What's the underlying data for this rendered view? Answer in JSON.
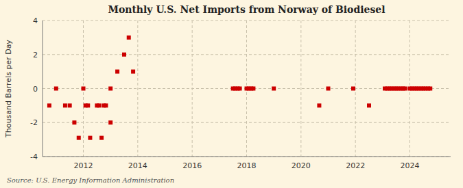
{
  "chart_data": {
    "type": "scatter",
    "title": "Monthly U.S. Net Imports from Norway of Biodiesel",
    "ylabel": "Thousand Barrels per Day",
    "annotations": [
      "Source: U.S. Energy Information Administration"
    ],
    "x": [
      2010.75,
      2011.0,
      2011.33,
      2011.5,
      2011.67,
      2011.83,
      2012.0,
      2012.08,
      2012.17,
      2012.25,
      2012.5,
      2012.58,
      2012.67,
      2012.75,
      2012.83,
      2013.0,
      2013.0,
      2013.25,
      2013.5,
      2013.67,
      2013.83,
      2017.5,
      2017.58,
      2017.67,
      2017.75,
      2018.0,
      2018.08,
      2018.17,
      2018.25,
      2019.0,
      2020.67,
      2021.0,
      2021.92,
      2022.5,
      2023.08,
      2023.17,
      2023.25,
      2023.33,
      2023.42,
      2023.5,
      2023.58,
      2023.67,
      2023.75,
      2023.83,
      2024.0,
      2024.08,
      2024.17,
      2024.25,
      2024.33,
      2024.42,
      2024.5,
      2024.58,
      2024.67,
      2024.75
    ],
    "values": [
      -1.0,
      0.0,
      -1.0,
      -1.0,
      -2.0,
      -2.9,
      0.0,
      -1.0,
      -1.0,
      -2.9,
      -1.0,
      -1.0,
      -2.9,
      -1.0,
      -1.0,
      0.0,
      -2.0,
      1.0,
      2.0,
      3.0,
      1.0,
      0.0,
      0.0,
      0.0,
      0.0,
      0.0,
      0.0,
      0.0,
      0.0,
      0.0,
      -1.0,
      0.0,
      0.0,
      -1.0,
      0.0,
      0.0,
      0.0,
      0.0,
      0.0,
      0.0,
      0.0,
      0.0,
      0.0,
      0.0,
      0.0,
      0.0,
      0.0,
      0.0,
      0.0,
      0.0,
      0.0,
      0.0,
      0.0,
      0.0
    ],
    "color": "#cc0000",
    "marker": "square",
    "xlim": [
      2010.5,
      2025.5
    ],
    "ylim": [
      -4,
      4
    ],
    "xticks": [
      2012,
      2014,
      2016,
      2018,
      2020,
      2022,
      2024
    ],
    "yticks": [
      -4,
      -2,
      0,
      2,
      4
    ],
    "grid": true
  }
}
